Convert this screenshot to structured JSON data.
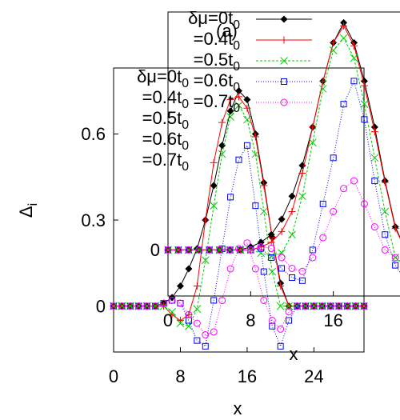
{
  "chart_data": [
    {
      "type": "line",
      "panel": "main",
      "xlabel": "x",
      "ylabel": "Δi",
      "xticks": [
        0,
        8,
        16,
        24
      ],
      "yticks": [
        0,
        0.3,
        0.6
      ],
      "ytick_labels": [
        "0",
        "0.3",
        "0.6"
      ],
      "xlim": [
        0,
        30
      ],
      "ylim": [
        -0.16,
        0.83
      ],
      "legend_title": "δμ=0t0",
      "series": [
        {
          "name": "δμ=0t0",
          "label": "δμ=0t0",
          "color": "#000000",
          "marker": "diamond",
          "dash": "",
          "x": [
            0,
            1,
            2,
            3,
            4,
            5,
            6,
            7,
            8,
            9,
            10,
            11,
            12,
            13,
            14,
            15,
            16,
            17,
            18,
            19,
            20,
            21,
            22,
            23,
            24,
            25,
            26,
            27,
            28,
            29,
            30
          ],
          "y": [
            0,
            0,
            0,
            0,
            0,
            0,
            0.01,
            0.03,
            0.07,
            0.13,
            0.2,
            0.3,
            0.42,
            0.56,
            0.68,
            0.75,
            0.72,
            0.6,
            0.43,
            0.24,
            0.08,
            0,
            0,
            0,
            0,
            0,
            0,
            0,
            0,
            0,
            0
          ]
        },
        {
          "name": "=0.4t0",
          "label": "=0.4t0",
          "color": "#ff0000",
          "marker": "plus",
          "dash": "",
          "x": [
            0,
            1,
            2,
            3,
            4,
            5,
            6,
            7,
            8,
            9,
            10,
            11,
            12,
            13,
            14,
            15,
            16,
            17,
            18,
            19,
            20,
            21,
            22,
            23,
            24,
            25,
            26,
            27,
            28,
            29,
            30
          ],
          "y": [
            0,
            0,
            0,
            0,
            0,
            0,
            0,
            -0.03,
            -0.05,
            -0.03,
            0.07,
            0.3,
            0.5,
            0.64,
            0.72,
            0.73,
            0.69,
            0.59,
            0.42,
            0.24,
            0.07,
            0,
            0,
            0,
            0,
            0,
            0,
            0,
            0,
            0,
            0
          ]
        },
        {
          "name": "=0.5t0",
          "label": "=0.5t0",
          "color": "#00cc00",
          "marker": "cross",
          "dash": "3,2",
          "x": [
            0,
            1,
            2,
            3,
            4,
            5,
            6,
            7,
            8,
            9,
            10,
            11,
            12,
            13,
            14,
            15,
            16,
            17,
            18,
            19,
            20,
            21,
            22,
            23,
            24,
            25,
            26,
            27,
            28,
            29,
            30
          ],
          "y": [
            0,
            0,
            0,
            0,
            0,
            0,
            0,
            -0.02,
            -0.06,
            -0.07,
            -0.01,
            0.16,
            0.35,
            0.53,
            0.66,
            0.7,
            0.65,
            0.53,
            0.33,
            0.12,
            0,
            0,
            0,
            0,
            0,
            0,
            0,
            0,
            0,
            0,
            0
          ]
        },
        {
          "name": "=0.6t0",
          "label": "=0.6t0",
          "color": "#0000ff",
          "marker": "square",
          "dash": "1,2",
          "x": [
            0,
            1,
            2,
            3,
            4,
            5,
            6,
            7,
            8,
            9,
            10,
            11,
            12,
            13,
            14,
            15,
            16,
            17,
            18,
            19,
            20,
            21,
            22,
            23,
            24,
            25,
            26,
            27,
            28,
            29,
            30
          ],
          "y": [
            0,
            0,
            0,
            0,
            0,
            0,
            0.01,
            0.02,
            0.01,
            -0.05,
            -0.12,
            -0.14,
            0.02,
            0.2,
            0.38,
            0.51,
            0.56,
            0.35,
            0.12,
            -0.07,
            -0.14,
            -0.05,
            0,
            0,
            0,
            0,
            0,
            0,
            0,
            0,
            0
          ]
        },
        {
          "name": "=0.7t0",
          "label": "=0.7t0",
          "color": "#ff00ff",
          "marker": "circle",
          "dash": "1,2",
          "x": [
            0,
            1,
            2,
            3,
            4,
            5,
            6,
            7,
            8,
            9,
            10,
            11,
            12,
            13,
            14,
            15,
            16,
            17,
            18,
            19,
            20,
            21,
            22,
            23,
            24,
            25,
            26,
            27,
            28,
            29,
            30
          ],
          "y": [
            0,
            0,
            0,
            0,
            0,
            0,
            0.01,
            0.02,
            0.01,
            -0.03,
            -0.06,
            -0.1,
            -0.09,
            0.02,
            0.13,
            0.2,
            0.22,
            0.13,
            0.02,
            -0.05,
            -0.08,
            -0.02,
            0,
            0,
            0,
            0,
            0,
            0,
            0,
            0,
            0
          ]
        }
      ]
    },
    {
      "type": "line",
      "panel": "inset",
      "annotation": "(a)",
      "xlabel": "x",
      "ylabel": "",
      "xticks": [
        0,
        8,
        16
      ],
      "yticks": [
        0
      ],
      "ytick_labels": [
        "0"
      ],
      "xlim": [
        0,
        24
      ],
      "ylim": [
        -0.3,
        1.55
      ],
      "series": [
        {
          "name": "δμ=0t0",
          "label": "δμ=0t0",
          "color": "#000000",
          "marker": "diamond",
          "dash": "",
          "x": [
            0,
            1,
            2,
            3,
            4,
            5,
            6,
            7,
            8,
            9,
            10,
            11,
            12,
            13,
            14,
            15,
            16,
            17,
            18,
            19,
            20,
            21,
            22,
            23
          ],
          "y": [
            0,
            0,
            0,
            0,
            0,
            0,
            0,
            0,
            0.02,
            0.05,
            0.1,
            0.2,
            0.35,
            0.55,
            0.8,
            1.1,
            1.35,
            1.48,
            1.35,
            1.1,
            0.8,
            0.45,
            0.15,
            0
          ]
        },
        {
          "name": "=0.4t0",
          "label": "=0.4t0",
          "color": "#ff0000",
          "marker": "plus",
          "dash": "",
          "x": [
            0,
            1,
            2,
            3,
            4,
            5,
            6,
            7,
            8,
            9,
            10,
            11,
            12,
            13,
            14,
            15,
            16,
            17,
            18,
            19,
            20,
            21,
            22,
            23
          ],
          "y": [
            0,
            0,
            0,
            0,
            0,
            0,
            0,
            0,
            0,
            0.02,
            0.05,
            0.12,
            0.25,
            0.5,
            0.8,
            1.1,
            1.35,
            1.46,
            1.33,
            1.07,
            0.77,
            0.44,
            0.14,
            0
          ]
        },
        {
          "name": "=0.5t0",
          "label": "=0.5t0",
          "color": "#00cc00",
          "marker": "cross",
          "dash": "3,2",
          "x": [
            0,
            1,
            2,
            3,
            4,
            5,
            6,
            7,
            8,
            9,
            10,
            11,
            12,
            13,
            14,
            15,
            16,
            17,
            18,
            19,
            20,
            21,
            22,
            23
          ],
          "y": [
            0,
            0,
            0,
            0,
            0,
            0,
            0,
            0,
            0,
            -0.02,
            -0.04,
            -0.02,
            0.1,
            0.35,
            0.7,
            1.05,
            1.3,
            1.38,
            1.25,
            0.95,
            0.6,
            0.25,
            -0.05,
            -0.1
          ]
        },
        {
          "name": "=0.6t0",
          "label": "=0.6t0",
          "color": "#0000ff",
          "marker": "square",
          "dash": "1,2",
          "x": [
            0,
            1,
            2,
            3,
            4,
            5,
            6,
            7,
            8,
            9,
            10,
            11,
            12,
            13,
            14,
            15,
            16,
            17,
            18,
            19,
            20,
            21,
            22,
            23
          ],
          "y": [
            0,
            0,
            0,
            0,
            0,
            0,
            0,
            0,
            0,
            0.01,
            -0.05,
            -0.12,
            -0.18,
            -0.2,
            0,
            0.3,
            0.6,
            0.95,
            1.1,
            0.85,
            0.45,
            0.1,
            -0.1,
            -0.2
          ]
        },
        {
          "name": "=0.7t0",
          "label": "=0.7t0",
          "color": "#ff00ff",
          "marker": "circle",
          "dash": "1,2",
          "x": [
            0,
            1,
            2,
            3,
            4,
            5,
            6,
            7,
            8,
            9,
            10,
            11,
            12,
            13,
            14,
            15,
            16,
            17,
            18,
            19,
            20,
            21,
            22,
            23
          ],
          "y": [
            0,
            0,
            0,
            0,
            0,
            0,
            0,
            0,
            0,
            0.02,
            0.01,
            -0.05,
            -0.12,
            -0.14,
            -0.05,
            0.08,
            0.25,
            0.4,
            0.45,
            0.3,
            0.15,
            0,
            -0.05,
            -0.05
          ]
        }
      ]
    }
  ]
}
